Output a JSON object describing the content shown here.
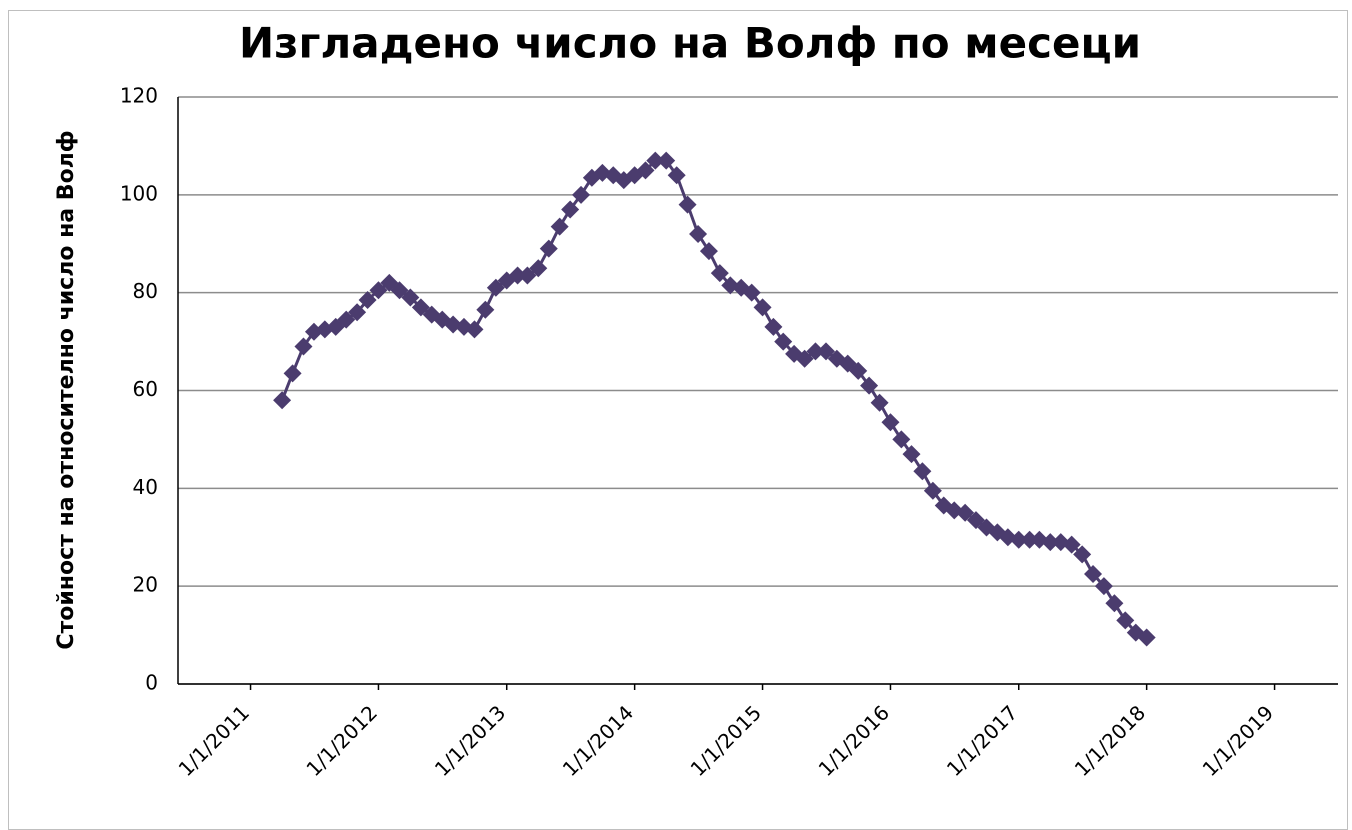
{
  "chart_data": {
    "type": "line",
    "title": "Изгладено число на Волф по месеци",
    "ylabel": "Стойност на относително число на Волф",
    "color": "#4b3c6e",
    "x": [
      "2011-04-01",
      "2011-05-01",
      "2011-06-01",
      "2011-07-01",
      "2011-08-01",
      "2011-09-01",
      "2011-10-01",
      "2011-11-01",
      "2011-12-01",
      "2012-01-01",
      "2012-02-01",
      "2012-03-01",
      "2012-04-01",
      "2012-05-01",
      "2012-06-01",
      "2012-07-01",
      "2012-08-01",
      "2012-09-01",
      "2012-10-01",
      "2012-11-01",
      "2012-12-01",
      "2013-01-01",
      "2013-02-01",
      "2013-03-01",
      "2013-04-01",
      "2013-05-01",
      "2013-06-01",
      "2013-07-01",
      "2013-08-01",
      "2013-09-01",
      "2013-10-01",
      "2013-11-01",
      "2013-12-01",
      "2014-01-01",
      "2014-02-01",
      "2014-03-01",
      "2014-04-01",
      "2014-05-01",
      "2014-06-01",
      "2014-07-01",
      "2014-08-01",
      "2014-09-01",
      "2014-10-01",
      "2014-11-01",
      "2014-12-01",
      "2015-01-01",
      "2015-02-01",
      "2015-03-01",
      "2015-04-01",
      "2015-05-01",
      "2015-06-01",
      "2015-07-01",
      "2015-08-01",
      "2015-09-01",
      "2015-10-01",
      "2015-11-01",
      "2015-12-01",
      "2016-01-01",
      "2016-02-01",
      "2016-03-01",
      "2016-04-01",
      "2016-05-01",
      "2016-06-01",
      "2016-07-01",
      "2016-08-01",
      "2016-09-01",
      "2016-10-01",
      "2016-11-01",
      "2016-12-01",
      "2017-01-01",
      "2017-02-01",
      "2017-03-01",
      "2017-04-01",
      "2017-05-01",
      "2017-06-01",
      "2017-07-01",
      "2017-08-01",
      "2017-09-01",
      "2017-10-01",
      "2017-11-01",
      "2017-12-01",
      "2018-01-01"
    ],
    "values": [
      58,
      63.5,
      69,
      72,
      72.5,
      73,
      74.5,
      76,
      78.5,
      80.5,
      82,
      80.5,
      79,
      77,
      75.5,
      74.5,
      73.5,
      73,
      72.5,
      76.5,
      81,
      82.5,
      83.5,
      83.5,
      85,
      89,
      93.5,
      97,
      100,
      103.5,
      104.5,
      104,
      103,
      104,
      105,
      107,
      107,
      104,
      98,
      92,
      88.5,
      84,
      81.5,
      81,
      80,
      77,
      73,
      70,
      67.5,
      66.5,
      68,
      68,
      66.5,
      65.5,
      64,
      61,
      57.5,
      53.5,
      50,
      47,
      43.5,
      39.5,
      36.5,
      35.5,
      35,
      33.5,
      32,
      31,
      30,
      29.5,
      29.5,
      29.5,
      29,
      29,
      28.5,
      26.5,
      22.5,
      20,
      16.5,
      13,
      10.5,
      9.5
    ],
    "xlim": [
      "2010-06-08",
      "2019-07-01"
    ],
    "xticks": [
      {
        "value": "2011-01-01",
        "label": "1/1/2011"
      },
      {
        "value": "2012-01-01",
        "label": "1/1/2012"
      },
      {
        "value": "2013-01-01",
        "label": "1/1/2013"
      },
      {
        "value": "2014-01-01",
        "label": "1/1/2014"
      },
      {
        "value": "2015-01-01",
        "label": "1/1/2015"
      },
      {
        "value": "2016-01-01",
        "label": "1/1/2016"
      },
      {
        "value": "2017-01-01",
        "label": "1/1/2017"
      },
      {
        "value": "2018-01-01",
        "label": "1/1/2018"
      },
      {
        "value": "2019-01-01",
        "label": "1/1/2019"
      }
    ],
    "ylim": [
      0,
      120
    ],
    "yticks": [
      0,
      20,
      40,
      60,
      80,
      100,
      120
    ],
    "grid": true
  }
}
